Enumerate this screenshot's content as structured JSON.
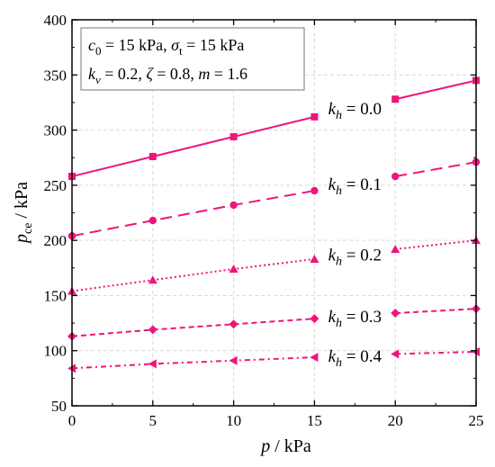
{
  "chart_data": {
    "type": "line",
    "xlabel": "p / kPa",
    "ylabel": "p_ce / kPa",
    "xlim": [
      0,
      25
    ],
    "ylim": [
      50,
      400
    ],
    "xticks": [
      0,
      5,
      10,
      15,
      20,
      25
    ],
    "yticks": [
      50,
      100,
      150,
      200,
      250,
      300,
      350,
      400
    ],
    "grid": true,
    "parameter_box": {
      "line1": "c0 = 15 kPa, σt = 15 kPa",
      "line2": "kv = 0.2, ζ = 0.8, m = 1.6"
    },
    "x": [
      0,
      5,
      10,
      15,
      20,
      25
    ],
    "color": "#f0147c",
    "series": [
      {
        "name": "k_h = 0.0",
        "marker": "square",
        "line": "solid",
        "values": [
          258,
          276,
          294,
          312,
          328,
          345
        ]
      },
      {
        "name": "k_h = 0.1",
        "marker": "circle",
        "line": "dashed",
        "values": [
          204,
          218,
          232,
          245,
          258,
          271
        ]
      },
      {
        "name": "k_h = 0.2",
        "marker": "triangle",
        "line": "dotted",
        "values": [
          154,
          164,
          174,
          183,
          192,
          200
        ]
      },
      {
        "name": "k_h = 0.3",
        "marker": "diamond",
        "line": "short-dashed",
        "values": [
          113,
          119,
          124,
          129,
          134,
          138
        ]
      },
      {
        "name": "k_h = 0.4",
        "marker": "left-triangle",
        "line": "dash-dot",
        "values": [
          84,
          88,
          91,
          94,
          97,
          99
        ]
      }
    ]
  }
}
